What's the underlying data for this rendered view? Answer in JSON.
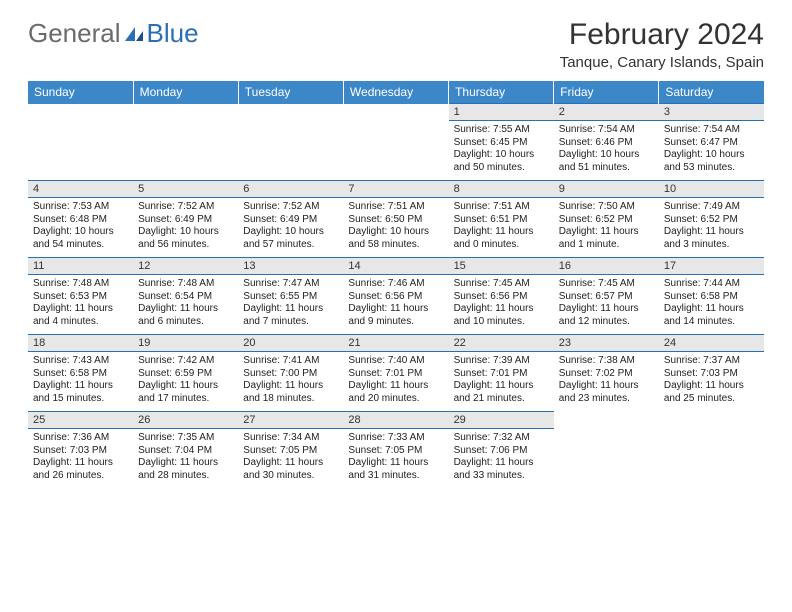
{
  "logo": {
    "text1": "General",
    "text2": "Blue"
  },
  "title": "February 2024",
  "location": "Tanque, Canary Islands, Spain",
  "colors": {
    "header_bg": "#3b87c8",
    "rule": "#2a6fb5",
    "daynum_bg": "#e7e7e7",
    "text": "#222222",
    "title_text": "#333333",
    "logo_gray": "#6b6b6b",
    "logo_blue": "#2a6fb5",
    "page_bg": "#ffffff"
  },
  "fonts": {
    "title_size": 30,
    "location_size": 15,
    "head_size": 12,
    "cell_size": 10,
    "daynum_size": 11
  },
  "dayHeaders": [
    "Sunday",
    "Monday",
    "Tuesday",
    "Wednesday",
    "Thursday",
    "Friday",
    "Saturday"
  ],
  "weeks": [
    [
      null,
      null,
      null,
      null,
      {
        "n": "1",
        "sr": "Sunrise: 7:55 AM",
        "ss": "Sunset: 6:45 PM",
        "dl": "Daylight: 10 hours and 50 minutes."
      },
      {
        "n": "2",
        "sr": "Sunrise: 7:54 AM",
        "ss": "Sunset: 6:46 PM",
        "dl": "Daylight: 10 hours and 51 minutes."
      },
      {
        "n": "3",
        "sr": "Sunrise: 7:54 AM",
        "ss": "Sunset: 6:47 PM",
        "dl": "Daylight: 10 hours and 53 minutes."
      }
    ],
    [
      {
        "n": "4",
        "sr": "Sunrise: 7:53 AM",
        "ss": "Sunset: 6:48 PM",
        "dl": "Daylight: 10 hours and 54 minutes."
      },
      {
        "n": "5",
        "sr": "Sunrise: 7:52 AM",
        "ss": "Sunset: 6:49 PM",
        "dl": "Daylight: 10 hours and 56 minutes."
      },
      {
        "n": "6",
        "sr": "Sunrise: 7:52 AM",
        "ss": "Sunset: 6:49 PM",
        "dl": "Daylight: 10 hours and 57 minutes."
      },
      {
        "n": "7",
        "sr": "Sunrise: 7:51 AM",
        "ss": "Sunset: 6:50 PM",
        "dl": "Daylight: 10 hours and 58 minutes."
      },
      {
        "n": "8",
        "sr": "Sunrise: 7:51 AM",
        "ss": "Sunset: 6:51 PM",
        "dl": "Daylight: 11 hours and 0 minutes."
      },
      {
        "n": "9",
        "sr": "Sunrise: 7:50 AM",
        "ss": "Sunset: 6:52 PM",
        "dl": "Daylight: 11 hours and 1 minute."
      },
      {
        "n": "10",
        "sr": "Sunrise: 7:49 AM",
        "ss": "Sunset: 6:52 PM",
        "dl": "Daylight: 11 hours and 3 minutes."
      }
    ],
    [
      {
        "n": "11",
        "sr": "Sunrise: 7:48 AM",
        "ss": "Sunset: 6:53 PM",
        "dl": "Daylight: 11 hours and 4 minutes."
      },
      {
        "n": "12",
        "sr": "Sunrise: 7:48 AM",
        "ss": "Sunset: 6:54 PM",
        "dl": "Daylight: 11 hours and 6 minutes."
      },
      {
        "n": "13",
        "sr": "Sunrise: 7:47 AM",
        "ss": "Sunset: 6:55 PM",
        "dl": "Daylight: 11 hours and 7 minutes."
      },
      {
        "n": "14",
        "sr": "Sunrise: 7:46 AM",
        "ss": "Sunset: 6:56 PM",
        "dl": "Daylight: 11 hours and 9 minutes."
      },
      {
        "n": "15",
        "sr": "Sunrise: 7:45 AM",
        "ss": "Sunset: 6:56 PM",
        "dl": "Daylight: 11 hours and 10 minutes."
      },
      {
        "n": "16",
        "sr": "Sunrise: 7:45 AM",
        "ss": "Sunset: 6:57 PM",
        "dl": "Daylight: 11 hours and 12 minutes."
      },
      {
        "n": "17",
        "sr": "Sunrise: 7:44 AM",
        "ss": "Sunset: 6:58 PM",
        "dl": "Daylight: 11 hours and 14 minutes."
      }
    ],
    [
      {
        "n": "18",
        "sr": "Sunrise: 7:43 AM",
        "ss": "Sunset: 6:58 PM",
        "dl": "Daylight: 11 hours and 15 minutes."
      },
      {
        "n": "19",
        "sr": "Sunrise: 7:42 AM",
        "ss": "Sunset: 6:59 PM",
        "dl": "Daylight: 11 hours and 17 minutes."
      },
      {
        "n": "20",
        "sr": "Sunrise: 7:41 AM",
        "ss": "Sunset: 7:00 PM",
        "dl": "Daylight: 11 hours and 18 minutes."
      },
      {
        "n": "21",
        "sr": "Sunrise: 7:40 AM",
        "ss": "Sunset: 7:01 PM",
        "dl": "Daylight: 11 hours and 20 minutes."
      },
      {
        "n": "22",
        "sr": "Sunrise: 7:39 AM",
        "ss": "Sunset: 7:01 PM",
        "dl": "Daylight: 11 hours and 21 minutes."
      },
      {
        "n": "23",
        "sr": "Sunrise: 7:38 AM",
        "ss": "Sunset: 7:02 PM",
        "dl": "Daylight: 11 hours and 23 minutes."
      },
      {
        "n": "24",
        "sr": "Sunrise: 7:37 AM",
        "ss": "Sunset: 7:03 PM",
        "dl": "Daylight: 11 hours and 25 minutes."
      }
    ],
    [
      {
        "n": "25",
        "sr": "Sunrise: 7:36 AM",
        "ss": "Sunset: 7:03 PM",
        "dl": "Daylight: 11 hours and 26 minutes."
      },
      {
        "n": "26",
        "sr": "Sunrise: 7:35 AM",
        "ss": "Sunset: 7:04 PM",
        "dl": "Daylight: 11 hours and 28 minutes."
      },
      {
        "n": "27",
        "sr": "Sunrise: 7:34 AM",
        "ss": "Sunset: 7:05 PM",
        "dl": "Daylight: 11 hours and 30 minutes."
      },
      {
        "n": "28",
        "sr": "Sunrise: 7:33 AM",
        "ss": "Sunset: 7:05 PM",
        "dl": "Daylight: 11 hours and 31 minutes."
      },
      {
        "n": "29",
        "sr": "Sunrise: 7:32 AM",
        "ss": "Sunset: 7:06 PM",
        "dl": "Daylight: 11 hours and 33 minutes."
      },
      null,
      null
    ]
  ]
}
